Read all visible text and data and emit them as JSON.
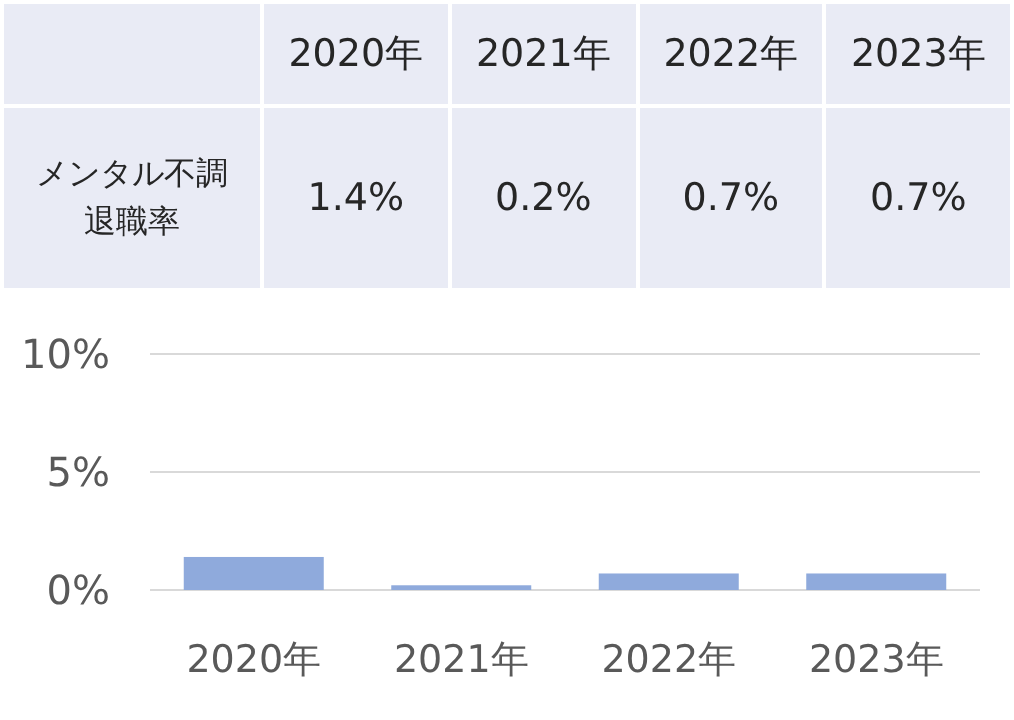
{
  "chart_data": {
    "type": "bar",
    "categories": [
      "2020年",
      "2021年",
      "2022年",
      "2023年"
    ],
    "series": [
      {
        "name": "メンタル不調退職率",
        "color": "#8faadc",
        "values": [
          1.4,
          0.2,
          0.7,
          0.7
        ],
        "value_labels": [
          "1.4%",
          "0.2%",
          "0.7%",
          "0.7%"
        ]
      }
    ],
    "ylim": [
      0,
      10
    ],
    "yticks": [
      {
        "value": 0,
        "label": "0%"
      },
      {
        "value": 5,
        "label": "5%"
      },
      {
        "value": 10,
        "label": "10%"
      }
    ],
    "grid": "y"
  }
}
